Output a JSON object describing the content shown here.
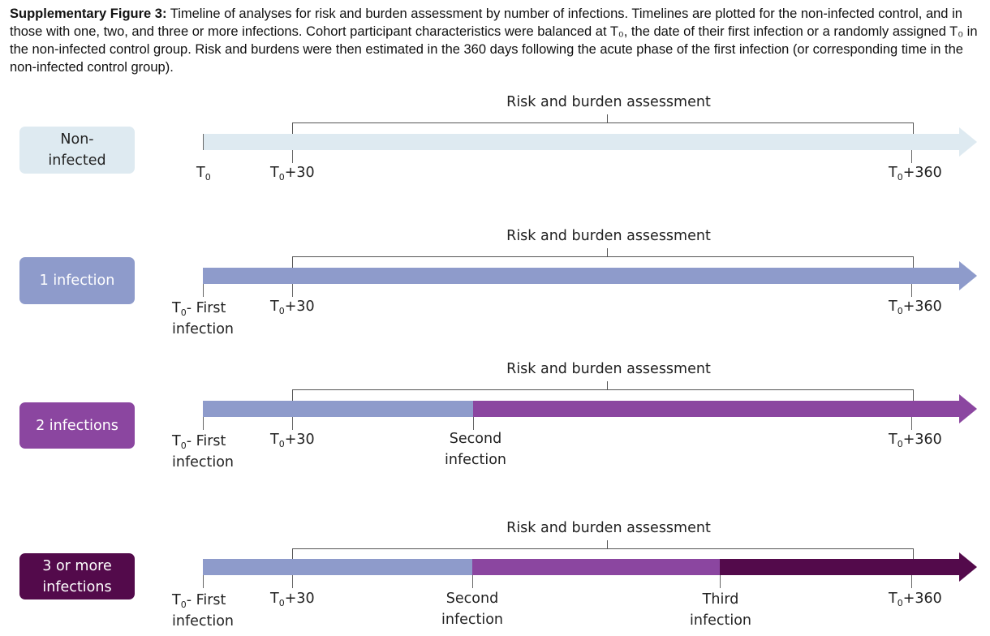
{
  "caption": {
    "bold": "Supplementary Figure 3:",
    "text": " Timeline of analyses for risk and burden assessment by number of infections. Timelines are plotted for the non-infected control, and in those with one, two, and three or more infections. Cohort participant characteristics were balanced at T₀, the date of their first infection or a randomly assigned T₀ in the non-infected control group. Risk and burdens were then estimated in the 360 days following the acute phase of the first infection (or corresponding time in the non-infected control group)."
  },
  "bracket_title": "Risk and burden assessment",
  "t_symbol": "T",
  "t_subscript": "0",
  "labels": {
    "t0": "",
    "t0_first": "- First",
    "infection": "infection",
    "plus30": "+30",
    "plus360": "+360",
    "second": "Second",
    "third": "Third"
  },
  "groups": [
    {
      "label_line1": "Non-",
      "label_line2": "infected",
      "color": "#deeaf1",
      "text_color": "#222222"
    },
    {
      "label_line1": "1 infection",
      "label_line2": "",
      "color": "#8e9bcb",
      "text_color": "#ffffff"
    },
    {
      "label_line1": "2 infections",
      "label_line2": "",
      "color": "#8b46a0",
      "text_color": "#ffffff"
    },
    {
      "label_line1": "3 or more",
      "label_line2": "infections",
      "color": "#530a4b",
      "text_color": "#ffffff"
    }
  ]
}
